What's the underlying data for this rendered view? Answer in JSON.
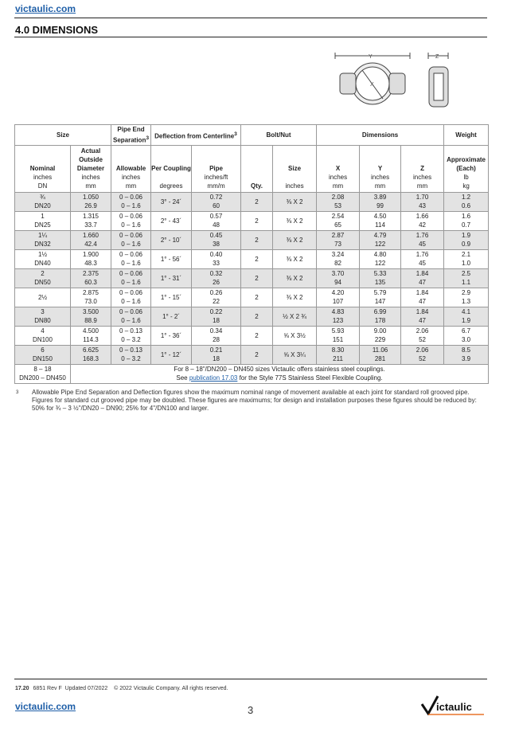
{
  "header": {
    "url": "victaulic.com",
    "section_title": "4.0 DIMENSIONS"
  },
  "diagram": {
    "labels": [
      "Y",
      "Z",
      "X"
    ]
  },
  "table": {
    "group_headers": {
      "size": "Size",
      "separation": "Pipe End Separation",
      "separation_sup": "3",
      "deflection": "Deflection from Centerline",
      "deflection_sup": "3",
      "bolt": "Bolt/Nut",
      "dimensions": "Dimensions",
      "weight": "Weight"
    },
    "columns": [
      {
        "title": "Nominal",
        "units": [
          "inches",
          "DN"
        ]
      },
      {
        "title": "Actual Outside Diameter",
        "units": [
          "inches",
          "mm"
        ]
      },
      {
        "title": "Allowable",
        "units": [
          "inches",
          "mm"
        ]
      },
      {
        "title": "Per Coupling",
        "units": [
          "degrees"
        ]
      },
      {
        "title": "Pipe",
        "units": [
          "inches/ft",
          "mm/m"
        ]
      },
      {
        "title": "Qty.",
        "units": []
      },
      {
        "title": "Size",
        "units": [
          "inches"
        ]
      },
      {
        "title": "X",
        "units": [
          "inches",
          "mm"
        ]
      },
      {
        "title": "Y",
        "units": [
          "inches",
          "mm"
        ]
      },
      {
        "title": "Z",
        "units": [
          "inches",
          "mm"
        ]
      },
      {
        "title": "Approximate (Each)",
        "units": [
          "lb",
          "kg"
        ]
      }
    ],
    "rows": [
      {
        "nom": [
          "¾",
          "DN20"
        ],
        "od": [
          "1.050",
          "26.9"
        ],
        "sep": [
          "0 – 0.06",
          "0 – 1.6"
        ],
        "defl": "3° - 24´",
        "pipe": [
          "0.72",
          "60"
        ],
        "qty": "2",
        "bolt": "⅜ X 2",
        "x": [
          "2.08",
          "53"
        ],
        "y": [
          "3.89",
          "99"
        ],
        "z": [
          "1.70",
          "43"
        ],
        "wt": [
          "1.2",
          "0.6"
        ]
      },
      {
        "nom": [
          "1",
          "DN25"
        ],
        "od": [
          "1.315",
          "33.7"
        ],
        "sep": [
          "0 – 0.06",
          "0 – 1.6"
        ],
        "defl": "2° - 43´",
        "pipe": [
          "0.57",
          "48"
        ],
        "qty": "2",
        "bolt": "⅜ X 2",
        "x": [
          "2.54",
          "65"
        ],
        "y": [
          "4.50",
          "114"
        ],
        "z": [
          "1.66",
          "42"
        ],
        "wt": [
          "1.6",
          "0.7"
        ]
      },
      {
        "nom": [
          "1¼",
          "DN32"
        ],
        "od": [
          "1.660",
          "42.4"
        ],
        "sep": [
          "0 – 0.06",
          "0 – 1.6"
        ],
        "defl": "2° - 10´",
        "pipe": [
          "0.45",
          "38"
        ],
        "qty": "2",
        "bolt": "⅜ X 2",
        "x": [
          "2.87",
          "73"
        ],
        "y": [
          "4.79",
          "122"
        ],
        "z": [
          "1.76",
          "45"
        ],
        "wt": [
          "1.9",
          "0.9"
        ]
      },
      {
        "nom": [
          "1½",
          "DN40"
        ],
        "od": [
          "1.900",
          "48.3"
        ],
        "sep": [
          "0 – 0.06",
          "0 – 1.6"
        ],
        "defl": "1° - 56´",
        "pipe": [
          "0.40",
          "33"
        ],
        "qty": "2",
        "bolt": "⅜ X 2",
        "x": [
          "3.24",
          "82"
        ],
        "y": [
          "4.80",
          "122"
        ],
        "z": [
          "1.76",
          "45"
        ],
        "wt": [
          "2.1",
          "1.0"
        ]
      },
      {
        "nom": [
          "2",
          "DN50"
        ],
        "od": [
          "2.375",
          "60.3"
        ],
        "sep": [
          "0 – 0.06",
          "0 – 1.6"
        ],
        "defl": "1° - 31´",
        "pipe": [
          "0.32",
          "26"
        ],
        "qty": "2",
        "bolt": "⅜ X 2",
        "x": [
          "3.70",
          "94"
        ],
        "y": [
          "5.33",
          "135"
        ],
        "z": [
          "1.84",
          "47"
        ],
        "wt": [
          "2.5",
          "1.1"
        ]
      },
      {
        "nom": [
          "2½",
          ""
        ],
        "od": [
          "2.875",
          "73.0"
        ],
        "sep": [
          "0 – 0.06",
          "0 – 1.6"
        ],
        "defl": "1° - 15´",
        "pipe": [
          "0.26",
          "22"
        ],
        "qty": "2",
        "bolt": "⅜ X 2",
        "x": [
          "4.20",
          "107"
        ],
        "y": [
          "5.79",
          "147"
        ],
        "z": [
          "1.84",
          "47"
        ],
        "wt": [
          "2.9",
          "1.3"
        ]
      },
      {
        "nom": [
          "3",
          "DN80"
        ],
        "od": [
          "3.500",
          "88.9"
        ],
        "sep": [
          "0 – 0.06",
          "0 – 1.6"
        ],
        "defl": "1° - 2´",
        "pipe": [
          "0.22",
          "18"
        ],
        "qty": "2",
        "bolt": "½ X 2 ¾",
        "x": [
          "4.83",
          "123"
        ],
        "y": [
          "6.99",
          "178"
        ],
        "z": [
          "1.84",
          "47"
        ],
        "wt": [
          "4.1",
          "1.9"
        ]
      },
      {
        "nom": [
          "4",
          "DN100"
        ],
        "od": [
          "4.500",
          "114.3"
        ],
        "sep": [
          "0 – 0.13",
          "0 – 3.2"
        ],
        "defl": "1° - 36´",
        "pipe": [
          "0.34",
          "28"
        ],
        "qty": "2",
        "bolt": "⅝ X 3½",
        "x": [
          "5.93",
          "151"
        ],
        "y": [
          "9.00",
          "229"
        ],
        "z": [
          "2.06",
          "52"
        ],
        "wt": [
          "6.7",
          "3.0"
        ]
      },
      {
        "nom": [
          "6",
          "DN150"
        ],
        "od": [
          "6.625",
          "168.3"
        ],
        "sep": [
          "0 – 0.13",
          "0 – 3.2"
        ],
        "defl": "1° - 12´",
        "pipe": [
          "0.21",
          "18"
        ],
        "qty": "2",
        "bolt": "⅝ X 3¼",
        "x": [
          "8.30",
          "211"
        ],
        "y": [
          "11.06",
          "281"
        ],
        "z": [
          "2.06",
          "52"
        ],
        "wt": [
          "8.5",
          "3.9"
        ]
      }
    ],
    "last_row": {
      "nom": [
        "8 – 18",
        "DN200 – DN450"
      ],
      "line1": "For 8 – 18\"/DN200 – DN450 sizes Victaulic offers stainless steel couplings.",
      "line2_pre": "See ",
      "line2_link": "publication 17.03",
      "line2_post": " for the Style 77S Stainless Steel Flexible Coupling."
    }
  },
  "footnote": {
    "marker": "3",
    "text": "Allowable Pipe End Separation and Deflection figures show the maximum nominal range of movement available at each joint for standard roll grooved pipe. Figures for standard cut grooved pipe may be doubled. These figures are maximums; for design and installation purposes these figures should be reduced by: 50% for ¾ – 3 ½\"/DN20 – DN90; 25% for 4\"/DN100 and larger."
  },
  "footer": {
    "pub": "17.20",
    "doc": "6851 Rev F",
    "updated": "Updated 07/2022",
    "copyright": "© 2022 Victaulic Company. All rights reserved.",
    "url": "victaulic.com",
    "page": "3",
    "logo_text": "Victaulic",
    "accent": "#e8732a"
  }
}
